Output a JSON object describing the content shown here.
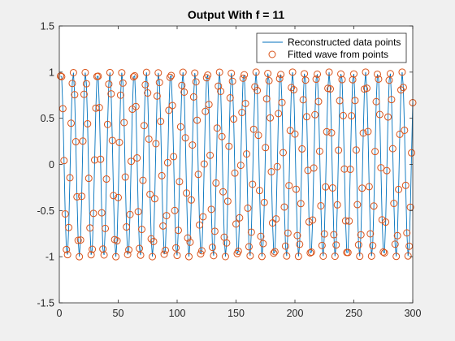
{
  "chart_data": {
    "type": "line",
    "title": "Output With f = 11",
    "xlabel": "",
    "ylabel": "",
    "xlim": [
      0,
      300
    ],
    "ylim": [
      -1.5,
      1.5
    ],
    "xticks": [
      0,
      50,
      100,
      150,
      200,
      250,
      300
    ],
    "yticks": [
      -1.5,
      -1,
      -0.5,
      0,
      0.5,
      1,
      1.5
    ],
    "xtick_labels": [
      "0",
      "50",
      "100",
      "150",
      "200",
      "250",
      "300"
    ],
    "ytick_labels": [
      "-1.5",
      "-1",
      "-0.5",
      "0",
      "0.5",
      "1",
      "1.5"
    ],
    "grid": false,
    "legend_position": "top-right",
    "series": [
      {
        "name": "Reconstructed data points",
        "style": "line",
        "color": "#0072BD",
        "sampling": {
          "x_start": 1,
          "x_end": 300,
          "step": 1
        },
        "generator": "sin(2*pi*x*0.0967 + 0.67)",
        "marker": "none"
      },
      {
        "name": "Fitted wave from points",
        "style": "markers",
        "color": "#D95319",
        "marker": "circle",
        "sampling": {
          "x_start": 1,
          "x_end": 300,
          "step": 1
        },
        "generator": "sin(2*pi*x*0.0967 + 0.67)"
      }
    ]
  }
}
